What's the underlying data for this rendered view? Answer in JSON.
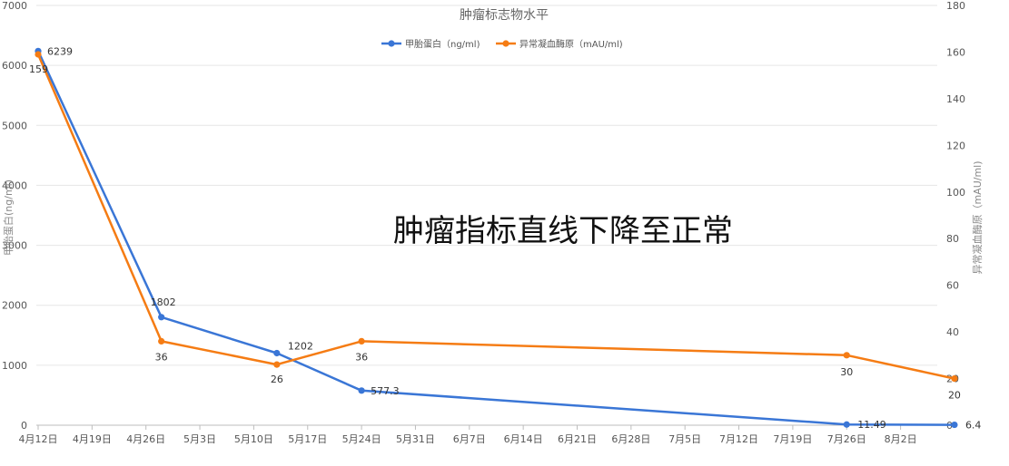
{
  "chart_data": {
    "type": "line",
    "title": "肿瘤标志物水平",
    "annotation": "肿瘤指标直线下降至正常",
    "ylabel_left": "甲胎蛋白(ng/ml)",
    "ylabel_right": "异常凝血酶原（mAU/ml)",
    "x_ticks": [
      "4月12日",
      "4月19日",
      "4月26日",
      "5月3日",
      "5月10日",
      "5月17日",
      "5月24日",
      "5月31日",
      "6月7日",
      "6月14日",
      "6月21日",
      "6月28日",
      "7月5日",
      "7月12日",
      "7月19日",
      "7月26日",
      "8月2日"
    ],
    "y_left_ticks": [
      "0",
      "1000",
      "2000",
      "3000",
      "4000",
      "5000",
      "6000",
      "7000"
    ],
    "y_right_ticks": [
      "0",
      "20",
      "40",
      "60",
      "80",
      "100",
      "120",
      "140",
      "160",
      "180"
    ],
    "ylim_left": [
      0,
      7000
    ],
    "ylim_right": [
      0,
      180
    ],
    "grid": true,
    "legend_position": "top",
    "series": [
      {
        "name": "甲胎蛋白（ng/ml)",
        "axis": "left",
        "color": "#3a76d6",
        "x": [
          "4月12日",
          "4月28日",
          "5月13日",
          "5月24日",
          "7月26日",
          "8月9日"
        ],
        "values": [
          6239,
          1802,
          1202,
          577.3,
          11.49,
          6.4
        ],
        "labels": [
          "6239",
          "1802",
          "1202",
          "577.3",
          "11.49",
          "6.4"
        ]
      },
      {
        "name": "异常凝血酶原（mAU/ml)",
        "axis": "right",
        "color": "#f57c14",
        "x": [
          "4月12日",
          "4月28日",
          "5月13日",
          "5月24日",
          "7月26日",
          "8月9日"
        ],
        "values": [
          159,
          36,
          26,
          36,
          30,
          20
        ],
        "labels": [
          "159",
          "36",
          "26",
          "36",
          "30",
          "20"
        ]
      }
    ]
  }
}
